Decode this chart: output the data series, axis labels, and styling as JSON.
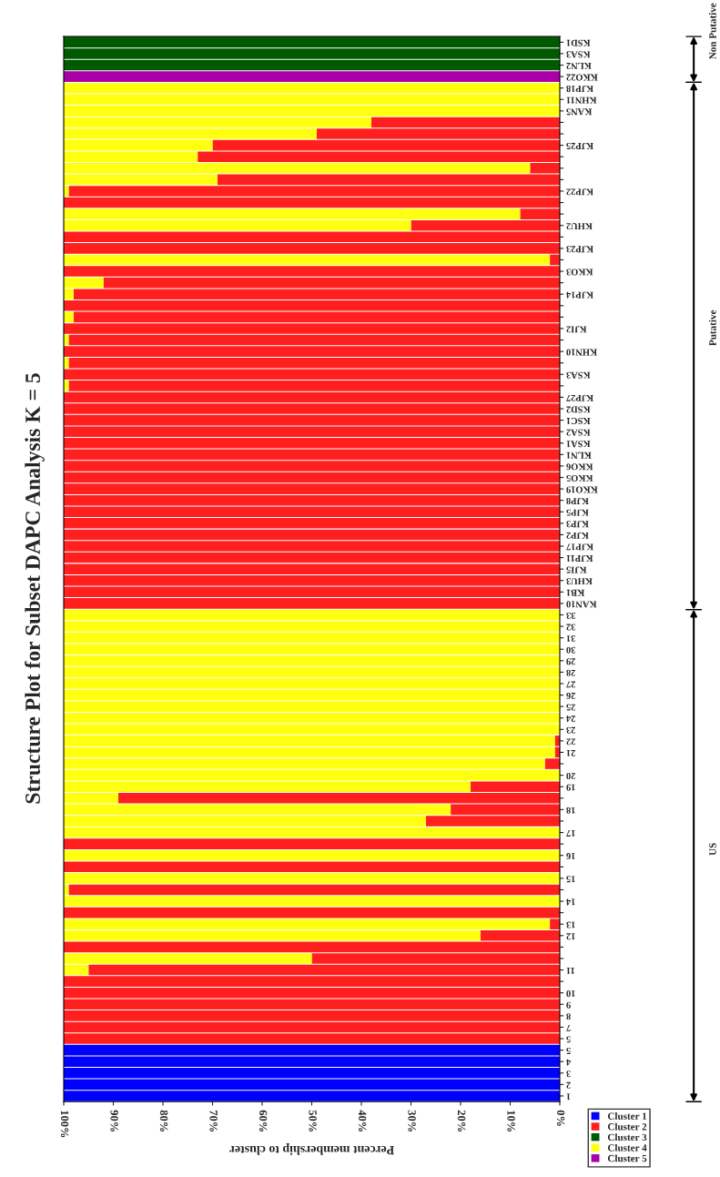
{
  "chart_data": {
    "type": "bar",
    "orientation": "horizontal",
    "stacked": true,
    "title": "Structure Plot for Subset DAPC Analysis K = 5",
    "xlabel": "Percent membership to cluster",
    "xlim": [
      100,
      0
    ],
    "xticks": [
      {
        "value": 100,
        "label": "100%"
      },
      {
        "value": 90,
        "label": "90%"
      },
      {
        "value": 80,
        "label": "80%"
      },
      {
        "value": 70,
        "label": "70%"
      },
      {
        "value": 60,
        "label": "60%"
      },
      {
        "value": 50,
        "label": "50%"
      },
      {
        "value": 40,
        "label": "40%"
      },
      {
        "value": 30,
        "label": "30%"
      },
      {
        "value": 20,
        "label": "20%"
      },
      {
        "value": 10,
        "label": "10%"
      },
      {
        "value": 0,
        "label": "0%"
      }
    ],
    "legend": "bottom right",
    "annotations": [
      "Non Putative",
      "Putative",
      "US"
    ],
    "categories": [
      "KSD1",
      "KSA3",
      "KLN2",
      "KKO22",
      "KJP18",
      "KHN11",
      "KAN5",
      null,
      null,
      "KJP25",
      null,
      null,
      null,
      "KJP22",
      null,
      null,
      "KHU2",
      null,
      "KJP23",
      null,
      "KKO3",
      null,
      "KJP14",
      null,
      null,
      "KJI2",
      null,
      "KHN10",
      null,
      "KSA3",
      null,
      "KJP27",
      "KSD2",
      "KSC1",
      "KSA2",
      "KSA1",
      "KLN1",
      "KKO6",
      "KKO5",
      "KKO19",
      "KJP8",
      "KJP5",
      "KJP3",
      "KJP2",
      "KJP17",
      "KJP11",
      "KJI5",
      "KHU3",
      "KB1",
      "KAN10",
      "33",
      "32",
      "31",
      "30",
      "29",
      "28",
      "27",
      "26",
      "25",
      "24",
      "23",
      "22",
      "21",
      null,
      "20",
      "19",
      null,
      "18",
      null,
      "17",
      null,
      "16",
      null,
      "15",
      null,
      "14",
      null,
      "13",
      "12",
      null,
      null,
      "11",
      null,
      "10",
      "9",
      "8",
      "7",
      "5",
      "5",
      "4",
      "3",
      "2",
      "1"
    ],
    "series": [
      {
        "name": "Cluster 1",
        "color": "#0000ff",
        "values": [
          0,
          0,
          0,
          0,
          0,
          0,
          0,
          0,
          0,
          0,
          0,
          0,
          0,
          0,
          0,
          0,
          0,
          0,
          0,
          0,
          0,
          0,
          0,
          0,
          0,
          0,
          0,
          0,
          0,
          0,
          0,
          0,
          0,
          0,
          0,
          0,
          0,
          0,
          0,
          0,
          0,
          0,
          0,
          0,
          0,
          0,
          0,
          0,
          0,
          0,
          0,
          0,
          0,
          0,
          0,
          0,
          0,
          0,
          0,
          0,
          0,
          0,
          0,
          0,
          0,
          0,
          0,
          0,
          0,
          0,
          0,
          0,
          0,
          0,
          0,
          0,
          0,
          0,
          0,
          0,
          0,
          0,
          0,
          0,
          0,
          0,
          0,
          0,
          100,
          100,
          100,
          100,
          100
        ]
      },
      {
        "name": "Cluster 2",
        "color": "#ff1f1f",
        "values": [
          0,
          0,
          0,
          0,
          0,
          0,
          0,
          38,
          49,
          70,
          73,
          6,
          69,
          99,
          100,
          8,
          30,
          100,
          100,
          2,
          100,
          92,
          98,
          100,
          98,
          100,
          99,
          100,
          99,
          100,
          99,
          100,
          100,
          100,
          100,
          100,
          100,
          100,
          100,
          100,
          100,
          100,
          100,
          100,
          100,
          100,
          100,
          100,
          100,
          100,
          0,
          0,
          0,
          0,
          0,
          0,
          0,
          0,
          0,
          0,
          0,
          1,
          1,
          3,
          0,
          18,
          89,
          22,
          27,
          0,
          100,
          0,
          100,
          0,
          99,
          0,
          100,
          2,
          16,
          100,
          50,
          95,
          100,
          100,
          100,
          100,
          100,
          100,
          0,
          0,
          0,
          0,
          0
        ]
      },
      {
        "name": "Cluster 3",
        "color": "#005a00",
        "values": [
          100,
          100,
          100,
          0,
          0,
          0,
          0,
          0,
          0,
          0,
          0,
          0,
          0,
          0,
          0,
          0,
          0,
          0,
          0,
          0,
          0,
          0,
          0,
          0,
          0,
          0,
          0,
          0,
          0,
          0,
          0,
          0,
          0,
          0,
          0,
          0,
          0,
          0,
          0,
          0,
          0,
          0,
          0,
          0,
          0,
          0,
          0,
          0,
          0,
          0,
          0,
          0,
          0,
          0,
          0,
          0,
          0,
          0,
          0,
          0,
          0,
          0,
          0,
          0,
          0,
          0,
          0,
          0,
          0,
          0,
          0,
          0,
          0,
          0,
          0,
          0,
          0,
          0,
          0,
          0,
          0,
          0,
          0,
          0,
          0,
          0,
          0,
          0,
          0,
          0,
          0,
          0,
          0
        ]
      },
      {
        "name": "Cluster 4",
        "color": "#ffff10",
        "values": [
          0,
          0,
          0,
          0,
          100,
          100,
          100,
          62,
          51,
          30,
          27,
          94,
          31,
          1,
          0,
          92,
          70,
          0,
          0,
          98,
          0,
          8,
          2,
          0,
          2,
          0,
          1,
          0,
          1,
          0,
          1,
          0,
          0,
          0,
          0,
          0,
          0,
          0,
          0,
          0,
          0,
          0,
          0,
          0,
          0,
          0,
          0,
          0,
          0,
          0,
          100,
          100,
          100,
          100,
          100,
          100,
          100,
          100,
          100,
          100,
          100,
          99,
          99,
          97,
          100,
          82,
          11,
          78,
          73,
          100,
          0,
          100,
          0,
          100,
          1,
          100,
          0,
          98,
          84,
          0,
          50,
          5,
          0,
          0,
          0,
          0,
          0,
          0,
          0,
          0,
          0,
          0,
          0
        ]
      },
      {
        "name": "Cluster 5",
        "color": "#aa00aa",
        "values": [
          0,
          0,
          0,
          100,
          0,
          0,
          0,
          0,
          0,
          0,
          0,
          0,
          0,
          0,
          0,
          0,
          0,
          0,
          0,
          0,
          0,
          0,
          0,
          0,
          0,
          0,
          0,
          0,
          0,
          0,
          0,
          0,
          0,
          0,
          0,
          0,
          0,
          0,
          0,
          0,
          0,
          0,
          0,
          0,
          0,
          0,
          0,
          0,
          0,
          0,
          0,
          0,
          0,
          0,
          0,
          0,
          0,
          0,
          0,
          0,
          0,
          0,
          0,
          0,
          0,
          0,
          0,
          0,
          0,
          0,
          0,
          0,
          0,
          0,
          0,
          0,
          0,
          0,
          0,
          0,
          0,
          0,
          0,
          0,
          0,
          0,
          0,
          0,
          0,
          0,
          0,
          0,
          0
        ]
      }
    ]
  }
}
